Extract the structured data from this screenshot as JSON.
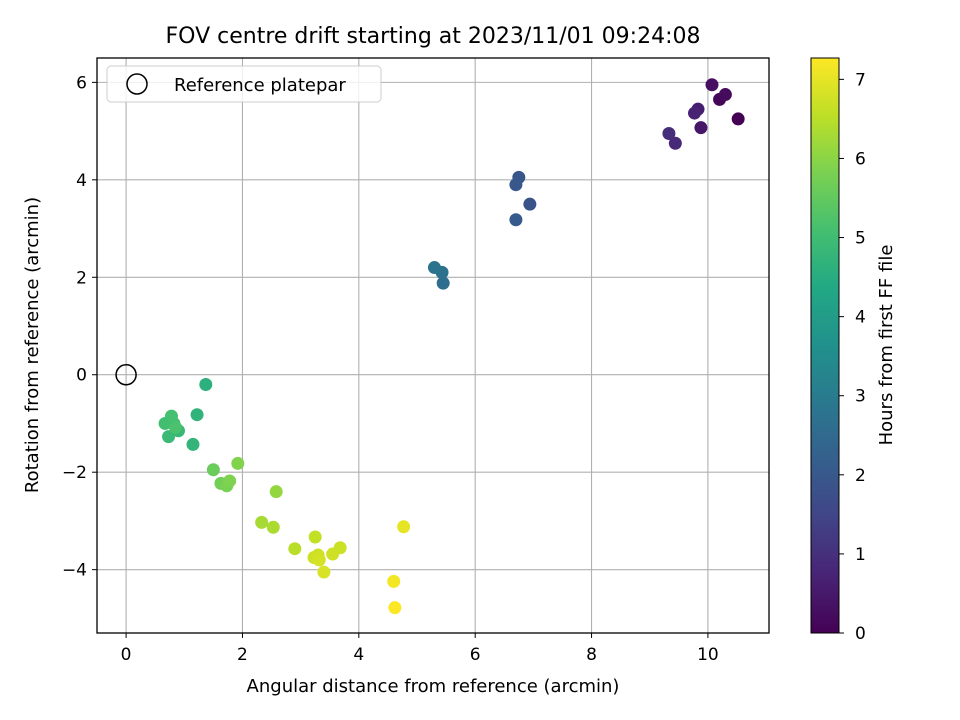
{
  "chart_data": {
    "type": "scatter",
    "title": "FOV centre drift starting at 2023/11/01 09:24:08",
    "xlabel": "Angular distance from reference (arcmin)",
    "ylabel": "Rotation from reference (arcmin)",
    "xlim": [
      -0.5,
      11.05
    ],
    "ylim": [
      -5.3,
      6.5
    ],
    "xticks": [
      0,
      2,
      4,
      6,
      8,
      10
    ],
    "yticks": [
      -4,
      -2,
      0,
      2,
      4,
      6
    ],
    "grid": true,
    "legend": {
      "position": "top-left",
      "entries": [
        "Reference platepar"
      ]
    },
    "reference_point": {
      "x": 0,
      "y": 0,
      "label": "Reference platepar"
    },
    "colorbar": {
      "label": "Hours from first FF file",
      "colormap": "viridis",
      "range": [
        0,
        7.27
      ],
      "ticks": [
        0,
        1,
        2,
        3,
        4,
        5,
        6,
        7
      ]
    },
    "points": [
      {
        "x": 10.52,
        "y": 5.25,
        "hours": 0.0
      },
      {
        "x": 10.2,
        "y": 5.65,
        "hours": 0.1
      },
      {
        "x": 10.3,
        "y": 5.75,
        "hours": 0.2
      },
      {
        "x": 10.07,
        "y": 5.95,
        "hours": 0.3
      },
      {
        "x": 9.88,
        "y": 5.07,
        "hours": 0.45
      },
      {
        "x": 9.83,
        "y": 5.45,
        "hours": 0.6
      },
      {
        "x": 9.77,
        "y": 5.37,
        "hours": 0.7
      },
      {
        "x": 9.44,
        "y": 4.75,
        "hours": 0.85
      },
      {
        "x": 9.33,
        "y": 4.95,
        "hours": 0.95
      },
      {
        "x": 6.94,
        "y": 3.5,
        "hours": 1.85
      },
      {
        "x": 6.75,
        "y": 4.05,
        "hours": 1.95
      },
      {
        "x": 6.7,
        "y": 3.9,
        "hours": 2.0
      },
      {
        "x": 6.7,
        "y": 3.18,
        "hours": 2.05
      },
      {
        "x": 5.45,
        "y": 1.88,
        "hours": 2.6
      },
      {
        "x": 5.43,
        "y": 2.1,
        "hours": 2.7
      },
      {
        "x": 5.3,
        "y": 2.2,
        "hours": 2.8
      },
      {
        "x": 1.37,
        "y": -0.2,
        "hours": 4.6
      },
      {
        "x": 1.22,
        "y": -0.82,
        "hours": 4.7
      },
      {
        "x": 1.15,
        "y": -1.43,
        "hours": 4.75
      },
      {
        "x": 0.9,
        "y": -1.15,
        "hours": 4.85
      },
      {
        "x": 0.73,
        "y": -1.27,
        "hours": 4.9
      },
      {
        "x": 0.82,
        "y": -1.0,
        "hours": 5.0
      },
      {
        "x": 0.67,
        "y": -1.0,
        "hours": 5.05
      },
      {
        "x": 0.78,
        "y": -0.85,
        "hours": 5.1
      },
      {
        "x": 0.85,
        "y": -1.08,
        "hours": 5.15
      },
      {
        "x": 1.5,
        "y": -1.95,
        "hours": 5.6
      },
      {
        "x": 1.63,
        "y": -2.23,
        "hours": 5.7
      },
      {
        "x": 1.73,
        "y": -2.28,
        "hours": 5.8
      },
      {
        "x": 1.78,
        "y": -2.18,
        "hours": 5.85
      },
      {
        "x": 1.92,
        "y": -1.82,
        "hours": 5.9
      },
      {
        "x": 2.58,
        "y": -2.4,
        "hours": 6.1
      },
      {
        "x": 2.33,
        "y": -3.03,
        "hours": 6.3
      },
      {
        "x": 2.53,
        "y": -3.13,
        "hours": 6.35
      },
      {
        "x": 2.9,
        "y": -3.57,
        "hours": 6.5
      },
      {
        "x": 3.25,
        "y": -3.33,
        "hours": 6.6
      },
      {
        "x": 3.23,
        "y": -3.75,
        "hours": 6.7
      },
      {
        "x": 3.3,
        "y": -3.7,
        "hours": 6.75
      },
      {
        "x": 3.32,
        "y": -3.8,
        "hours": 6.8
      },
      {
        "x": 3.55,
        "y": -3.68,
        "hours": 6.75
      },
      {
        "x": 3.68,
        "y": -3.55,
        "hours": 6.7
      },
      {
        "x": 3.4,
        "y": -4.05,
        "hours": 6.85
      },
      {
        "x": 4.77,
        "y": -3.12,
        "hours": 7.0
      },
      {
        "x": 4.6,
        "y": -4.24,
        "hours": 7.15
      },
      {
        "x": 4.62,
        "y": -4.78,
        "hours": 7.25
      }
    ]
  }
}
